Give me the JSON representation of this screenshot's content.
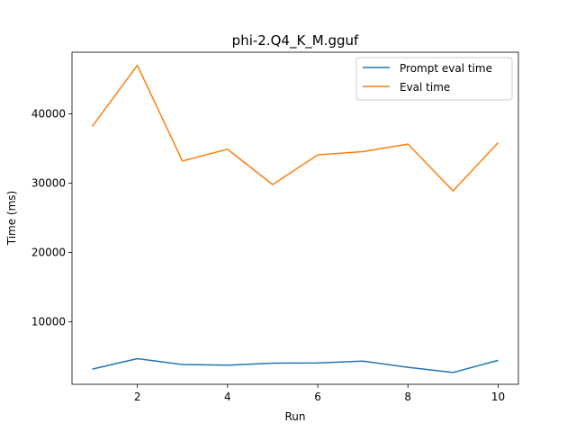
{
  "chart_data": {
    "type": "line",
    "title": "phi-2.Q4_K_M.gguf",
    "xlabel": "Run",
    "ylabel": "Time (ms)",
    "x": [
      1,
      2,
      3,
      4,
      5,
      6,
      7,
      8,
      9,
      10
    ],
    "xlim": [
      0.55,
      10.45
    ],
    "ylim": [
      1000,
      48900
    ],
    "xticks": [
      2,
      4,
      6,
      8,
      10
    ],
    "yticks": [
      10000,
      20000,
      30000,
      40000
    ],
    "grid": false,
    "legend_position": "top-right",
    "series": [
      {
        "name": "Prompt eval time",
        "color": "#1f77b4",
        "values": [
          3200,
          4700,
          3850,
          3750,
          4050,
          4080,
          4350,
          3450,
          2700,
          4450
        ]
      },
      {
        "name": "Eval time",
        "color": "#ff7f0e",
        "values": [
          38200,
          47000,
          33200,
          34900,
          29800,
          34100,
          34550,
          35650,
          28900,
          35850
        ]
      }
    ]
  }
}
